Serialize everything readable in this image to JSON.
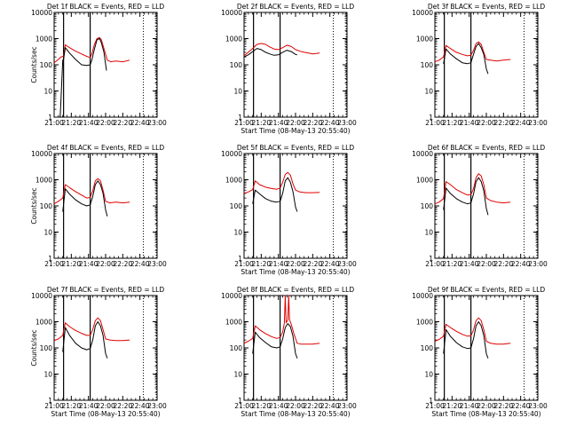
{
  "chart_data": [
    {
      "type": "line",
      "title": "Det 1f BLACK = Events, RED = LLD",
      "xlabel": "",
      "ylabel": "Counts/sec",
      "xticks": [
        "21:00",
        "21:20",
        "21:40",
        "22:00",
        "22:20",
        "22:40",
        "23:00"
      ],
      "yticks": [
        "1",
        "10",
        "100",
        "1000",
        "10000"
      ],
      "yscale": "log",
      "ylim": [
        1,
        10000
      ],
      "xlim_min": [
        0,
        120
      ],
      "dotted_x_min": [
        104,
        119
      ],
      "solid_x_min": [
        11,
        42
      ],
      "series": [
        {
          "color": "#e00000",
          "x": [
            0,
            5,
            8,
            11,
            13,
            18,
            25,
            32,
            38,
            42,
            44,
            47,
            50,
            53,
            55,
            58,
            62,
            66,
            72,
            80,
            88
          ],
          "y": [
            120,
            160,
            200,
            210,
            580,
            450,
            330,
            260,
            210,
            190,
            260,
            600,
            1000,
            1100,
            900,
            420,
            150,
            130,
            140,
            130,
            150
          ]
        },
        {
          "color": "#000000",
          "x": [
            7,
            10,
            11,
            13,
            18,
            25,
            32,
            38,
            42,
            44,
            47,
            50,
            53,
            55,
            58,
            61
          ],
          "y": [
            1,
            150,
            160,
            450,
            280,
            160,
            100,
            95,
            100,
            150,
            400,
            900,
            1000,
            700,
            300,
            60
          ]
        }
      ]
    },
    {
      "type": "line",
      "title": "Det 2f BLACK = Events, RED = LLD",
      "xlabel": "Start Time (08-May-13 20:55:40)",
      "ylabel": "",
      "xticks": [
        "21:00",
        "21:20",
        "21:40",
        "22:00",
        "22:20",
        "22:40",
        "23:00"
      ],
      "yticks": [
        "1",
        "10",
        "100",
        "1000",
        "10000"
      ],
      "yscale": "log",
      "ylim": [
        1,
        10000
      ],
      "xlim_min": [
        0,
        120
      ],
      "dotted_x_min": [
        104,
        119
      ],
      "solid_x_min": [
        11,
        42
      ],
      "series": [
        {
          "color": "#e00000",
          "x": [
            0,
            5,
            10,
            15,
            20,
            25,
            30,
            35,
            40,
            45,
            50,
            55,
            60,
            65,
            70,
            75,
            80,
            88
          ],
          "y": [
            220,
            300,
            420,
            600,
            650,
            600,
            480,
            400,
            380,
            450,
            560,
            500,
            380,
            330,
            300,
            280,
            260,
            280
          ]
        },
        {
          "color": "#000000",
          "x": [
            0,
            5,
            10,
            15,
            20,
            25,
            30,
            35,
            40,
            45,
            50,
            55,
            60,
            62
          ],
          "y": [
            200,
            240,
            320,
            420,
            380,
            300,
            260,
            230,
            240,
            300,
            360,
            320,
            250,
            240
          ]
        }
      ]
    },
    {
      "type": "line",
      "title": "Det 3f BLACK = Events, RED = LLD",
      "xlabel": "",
      "ylabel": "",
      "xticks": [
        "21:00",
        "21:20",
        "21:40",
        "22:00",
        "22:20",
        "22:40",
        "23:00"
      ],
      "yticks": [
        "1",
        "10",
        "100",
        "1000",
        "10000"
      ],
      "yscale": "log",
      "ylim": [
        1,
        10000
      ],
      "xlim_min": [
        0,
        120
      ],
      "dotted_x_min": [
        104,
        119
      ],
      "solid_x_min": [
        11,
        42
      ],
      "series": [
        {
          "color": "#e00000",
          "x": [
            0,
            5,
            10,
            13,
            18,
            25,
            32,
            38,
            42,
            45,
            48,
            51,
            54,
            57,
            60,
            65,
            72,
            80,
            88
          ],
          "y": [
            130,
            150,
            200,
            550,
            420,
            300,
            250,
            220,
            230,
            350,
            650,
            750,
            600,
            300,
            160,
            150,
            140,
            150,
            160
          ]
        },
        {
          "color": "#000000",
          "x": [
            10,
            13,
            18,
            25,
            32,
            38,
            42,
            45,
            48,
            51,
            54,
            57,
            60,
            62
          ],
          "y": [
            110,
            400,
            260,
            170,
            120,
            110,
            120,
            250,
            500,
            650,
            450,
            250,
            70,
            45
          ]
        }
      ]
    },
    {
      "type": "line",
      "title": "Det 4f BLACK = Events, RED = LLD",
      "xlabel": "",
      "ylabel": "Counts/sec",
      "xticks": [
        "21:00",
        "21:20",
        "21:40",
        "22:00",
        "22:20",
        "22:40",
        "23:00"
      ],
      "yticks": [
        "1",
        "10",
        "100",
        "1000",
        "10000"
      ],
      "yscale": "log",
      "ylim": [
        1,
        10000
      ],
      "xlim_min": [
        0,
        120
      ],
      "dotted_x_min": [
        104,
        119
      ],
      "solid_x_min": [
        11,
        42
      ],
      "series": [
        {
          "color": "#e00000",
          "x": [
            0,
            5,
            10,
            13,
            18,
            25,
            32,
            38,
            42,
            45,
            48,
            51,
            54,
            57,
            60,
            65,
            72,
            80,
            88
          ],
          "y": [
            120,
            150,
            200,
            650,
            500,
            350,
            260,
            200,
            210,
            380,
            900,
            1100,
            900,
            400,
            150,
            130,
            140,
            130,
            140
          ]
        },
        {
          "color": "#000000",
          "x": [
            10,
            13,
            18,
            25,
            32,
            38,
            42,
            45,
            48,
            51,
            54,
            57,
            60,
            62
          ],
          "y": [
            60,
            450,
            280,
            170,
            120,
            100,
            110,
            230,
            650,
            900,
            650,
            300,
            70,
            40
          ]
        }
      ]
    },
    {
      "type": "line",
      "title": "Det 5f BLACK = Events, RED = LLD",
      "xlabel": "Start Time (08-May-13 20:55:40)",
      "ylabel": "",
      "xticks": [
        "21:00",
        "21:20",
        "21:40",
        "22:00",
        "22:20",
        "22:40",
        "23:00"
      ],
      "yticks": [
        "1",
        "10",
        "100",
        "1000",
        "10000"
      ],
      "yscale": "log",
      "ylim": [
        1,
        10000
      ],
      "xlim_min": [
        0,
        120
      ],
      "dotted_x_min": [
        104,
        119
      ],
      "solid_x_min": [
        11,
        42
      ],
      "series": [
        {
          "color": "#e00000",
          "x": [
            0,
            5,
            10,
            13,
            18,
            25,
            32,
            38,
            42,
            45,
            48,
            51,
            54,
            57,
            60,
            65,
            72,
            80,
            88
          ],
          "y": [
            300,
            340,
            420,
            900,
            650,
            520,
            460,
            430,
            480,
            800,
            1600,
            1900,
            1500,
            700,
            400,
            340,
            320,
            320,
            330
          ]
        },
        {
          "color": "#000000",
          "x": [
            10,
            13,
            18,
            25,
            32,
            38,
            42,
            45,
            48,
            51,
            54,
            57,
            60,
            62
          ],
          "y": [
            120,
            400,
            290,
            190,
            150,
            140,
            150,
            300,
            900,
            1200,
            800,
            350,
            90,
            60
          ]
        }
      ]
    },
    {
      "type": "line",
      "title": "Det 6f BLACK = Events, RED = LLD",
      "xlabel": "",
      "ylabel": "",
      "xticks": [
        "21:00",
        "21:20",
        "21:40",
        "22:00",
        "22:20",
        "22:40",
        "23:00"
      ],
      "yticks": [
        "1",
        "10",
        "100",
        "1000",
        "10000"
      ],
      "yscale": "log",
      "ylim": [
        1,
        10000
      ],
      "xlim_min": [
        0,
        120
      ],
      "dotted_x_min": [
        104,
        119
      ],
      "solid_x_min": [
        11,
        42
      ],
      "series": [
        {
          "color": "#e00000",
          "x": [
            0,
            5,
            10,
            13,
            18,
            25,
            32,
            38,
            42,
            45,
            48,
            51,
            54,
            57,
            60,
            65,
            72,
            80,
            88
          ],
          "y": [
            120,
            140,
            190,
            850,
            650,
            420,
            320,
            260,
            270,
            450,
            1200,
            1700,
            1400,
            650,
            200,
            160,
            140,
            130,
            140
          ]
        },
        {
          "color": "#000000",
          "x": [
            10,
            13,
            18,
            25,
            32,
            38,
            42,
            45,
            48,
            51,
            54,
            57,
            60,
            62
          ],
          "y": [
            70,
            480,
            300,
            190,
            140,
            120,
            130,
            280,
            850,
            1200,
            850,
            380,
            80,
            45
          ]
        }
      ]
    },
    {
      "type": "line",
      "title": "Det 7f BLACK = Events, RED = LLD",
      "xlabel": "Start Time (08-May-13 20:55:40)",
      "ylabel": "Counts/sec",
      "xticks": [
        "21:00",
        "21:20",
        "21:40",
        "22:00",
        "22:20",
        "22:40",
        "23:00"
      ],
      "yticks": [
        "1",
        "10",
        "100",
        "1000",
        "10000"
      ],
      "yscale": "log",
      "ylim": [
        1,
        10000
      ],
      "xlim_min": [
        0,
        120
      ],
      "dotted_x_min": [
        104,
        119
      ],
      "solid_x_min": [
        11,
        42
      ],
      "series": [
        {
          "color": "#e00000",
          "x": [
            0,
            5,
            10,
            13,
            18,
            25,
            32,
            38,
            42,
            45,
            48,
            51,
            54,
            57,
            60,
            65,
            72,
            80,
            88
          ],
          "y": [
            190,
            220,
            300,
            900,
            650,
            460,
            360,
            300,
            300,
            500,
            1100,
            1400,
            1100,
            500,
            220,
            200,
            190,
            190,
            200
          ]
        },
        {
          "color": "#000000",
          "x": [
            10,
            13,
            18,
            25,
            32,
            38,
            42,
            45,
            48,
            51,
            54,
            57,
            60,
            62
          ],
          "y": [
            70,
            600,
            300,
            150,
            100,
            85,
            95,
            200,
            700,
            1000,
            700,
            300,
            60,
            40
          ]
        }
      ]
    },
    {
      "type": "line",
      "title": "Det 8f BLACK = Events, RED = LLD",
      "xlabel": "Start Time (08-May-13 20:55:40)",
      "ylabel": "",
      "xticks": [
        "21:00",
        "21:20",
        "21:40",
        "22:00",
        "22:20",
        "22:40",
        "23:00"
      ],
      "yticks": [
        "1",
        "10",
        "100",
        "1000",
        "10000"
      ],
      "yscale": "log",
      "ylim": [
        1,
        10000
      ],
      "xlim_min": [
        0,
        120
      ],
      "dotted_x_min": [
        104,
        119
      ],
      "solid_x_min": [
        11,
        42
      ],
      "series": [
        {
          "color": "#e00000",
          "x": [
            0,
            5,
            10,
            13,
            18,
            25,
            32,
            38,
            42,
            45,
            47,
            48,
            49,
            51,
            52,
            53,
            55,
            58,
            62,
            66,
            72,
            80,
            88
          ],
          "y": [
            150,
            180,
            230,
            700,
            500,
            350,
            270,
            230,
            250,
            400,
            900,
            10000,
            900,
            1200,
            10000,
            1200,
            800,
            350,
            150,
            140,
            140,
            140,
            150
          ]
        },
        {
          "color": "#000000",
          "x": [
            10,
            13,
            18,
            25,
            32,
            38,
            42,
            45,
            48,
            51,
            54,
            57,
            60,
            62
          ],
          "y": [
            60,
            400,
            250,
            160,
            110,
            100,
            110,
            220,
            600,
            850,
            650,
            280,
            60,
            40
          ]
        }
      ]
    },
    {
      "type": "line",
      "title": "Det 9f BLACK = Events, RED = LLD",
      "xlabel": "Start Time (08-May-13 20:55:40)",
      "ylabel": "",
      "xticks": [
        "21:00",
        "21:20",
        "21:40",
        "22:00",
        "22:20",
        "22:40",
        "23:00"
      ],
      "yticks": [
        "1",
        "10",
        "100",
        "1000",
        "10000"
      ],
      "yscale": "log",
      "ylim": [
        1,
        10000
      ],
      "xlim_min": [
        0,
        120
      ],
      "dotted_x_min": [
        104,
        119
      ],
      "solid_x_min": [
        11,
        42
      ],
      "series": [
        {
          "color": "#e00000",
          "x": [
            0,
            5,
            10,
            13,
            18,
            25,
            32,
            38,
            42,
            45,
            48,
            51,
            54,
            57,
            60,
            65,
            72,
            80,
            88
          ],
          "y": [
            180,
            210,
            280,
            800,
            600,
            430,
            330,
            280,
            290,
            480,
            1100,
            1400,
            1100,
            500,
            180,
            150,
            140,
            140,
            150
          ]
        },
        {
          "color": "#000000",
          "x": [
            10,
            13,
            18,
            25,
            32,
            38,
            42,
            45,
            48,
            51,
            54,
            57,
            60,
            62
          ],
          "y": [
            60,
            500,
            280,
            160,
            110,
            95,
            100,
            220,
            700,
            1000,
            700,
            300,
            60,
            40
          ]
        }
      ]
    }
  ]
}
